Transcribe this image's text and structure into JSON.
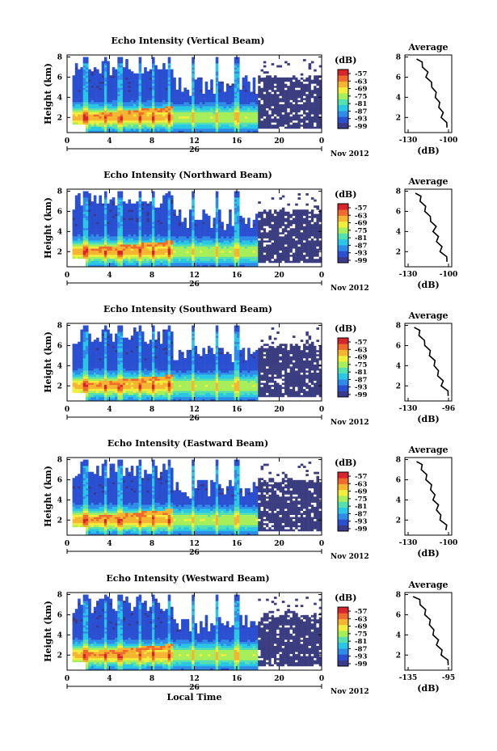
{
  "chart_data": [
    {
      "type": "heatmap",
      "title": "Echo Intensity (Vertical Beam)",
      "ylabel": "Height (km)",
      "xlabel": "",
      "date_label": "Nov 2012",
      "day_label": "26",
      "xticks": [
        "0",
        "4",
        "8",
        "12",
        "16",
        "20",
        "0"
      ],
      "yticks": [
        "2",
        "4",
        "6",
        "8"
      ],
      "xlim": [
        0,
        24
      ],
      "ylim": [
        0.5,
        8.2
      ],
      "colorbar": {
        "label": "(dB)",
        "ticks": [
          "-57",
          "-63",
          "-69",
          "-75",
          "-81",
          "-87",
          "-93",
          "-99"
        ],
        "range": [
          -99,
          -54
        ]
      },
      "average_profile": {
        "title": "Average",
        "xlabel": "(dB)",
        "xticks": [
          "-130",
          "-100"
        ],
        "yticks": [
          "2",
          "4",
          "6",
          "8"
        ],
        "xlim": [
          -135,
          -95
        ],
        "ylim": [
          0.5,
          8.2
        ],
        "height_km": [
          1.0,
          1.5,
          2.0,
          2.5,
          3.0,
          3.5,
          4.0,
          4.5,
          5.0,
          5.5,
          6.0,
          6.5,
          7.0,
          7.5,
          7.8
        ],
        "db": [
          -98,
          -101,
          -103,
          -104,
          -105,
          -107,
          -108,
          -110,
          -111,
          -114,
          -116,
          -117,
          -119,
          -122,
          -124
        ]
      }
    },
    {
      "type": "heatmap",
      "title": "Echo Intensity (Northward Beam)",
      "ylabel": "Height (km)",
      "xlabel": "",
      "date_label": "Nov 2012",
      "day_label": "26",
      "xticks": [
        "0",
        "4",
        "8",
        "12",
        "16",
        "20",
        "0"
      ],
      "yticks": [
        "2",
        "4",
        "6",
        "8"
      ],
      "xlim": [
        0,
        24
      ],
      "ylim": [
        0.5,
        8.2
      ],
      "colorbar": {
        "label": "(dB)",
        "ticks": [
          "-57",
          "-63",
          "-69",
          "-75",
          "-81",
          "-87",
          "-93",
          "-99"
        ],
        "range": [
          -99,
          -54
        ]
      },
      "average_profile": {
        "title": "Average",
        "xlabel": "(dB)",
        "xticks": [
          "-130",
          "-100"
        ],
        "yticks": [
          "2",
          "4",
          "6",
          "8"
        ],
        "xlim": [
          -135,
          -95
        ],
        "ylim": [
          0.5,
          8.2
        ],
        "height_km": [
          1.0,
          1.5,
          2.0,
          2.5,
          3.0,
          3.5,
          4.0,
          4.5,
          5.0,
          5.5,
          6.0,
          6.5,
          7.0,
          7.5,
          7.8
        ],
        "db": [
          -98,
          -101,
          -104,
          -105,
          -107,
          -108,
          -110,
          -110,
          -112,
          -115,
          -117,
          -119,
          -121,
          -123,
          -125
        ]
      }
    },
    {
      "type": "heatmap",
      "title": "Echo Intensity (Southward Beam)",
      "ylabel": "Height (km)",
      "xlabel": "",
      "date_label": "Nov 2012",
      "day_label": "26",
      "xticks": [
        "0",
        "4",
        "8",
        "12",
        "16",
        "20",
        "0"
      ],
      "yticks": [
        "2",
        "4",
        "6",
        "8"
      ],
      "xlim": [
        0,
        24
      ],
      "ylim": [
        0.5,
        8.2
      ],
      "colorbar": {
        "label": "(dB)",
        "ticks": [
          "-57",
          "-63",
          "-69",
          "-75",
          "-81",
          "-87",
          "-93",
          "-99"
        ],
        "range": [
          -99,
          -54
        ]
      },
      "average_profile": {
        "title": "Average",
        "xlabel": "(dB)",
        "xticks": [
          "-130",
          "-96"
        ],
        "yticks": [
          "2",
          "4",
          "6",
          "8"
        ],
        "xlim": [
          -135,
          -95
        ],
        "ylim": [
          0.5,
          8.2
        ],
        "height_km": [
          1.0,
          1.5,
          2.0,
          2.5,
          3.0,
          3.5,
          4.0,
          4.5,
          5.0,
          5.5,
          6.0,
          6.5,
          7.0,
          7.5,
          7.8
        ],
        "db": [
          -97,
          -100,
          -103,
          -104,
          -106,
          -108,
          -109,
          -111,
          -113,
          -115,
          -117,
          -120,
          -122,
          -124,
          -126
        ]
      }
    },
    {
      "type": "heatmap",
      "title": "Echo Intensity (Eastward Beam)",
      "ylabel": "Height (km)",
      "xlabel": "",
      "date_label": "Nov 2012",
      "day_label": "26",
      "xticks": [
        "0",
        "4",
        "8",
        "12",
        "16",
        "20",
        "0"
      ],
      "yticks": [
        "2",
        "4",
        "6",
        "8"
      ],
      "xlim": [
        0,
        24
      ],
      "ylim": [
        0.5,
        8.2
      ],
      "colorbar": {
        "label": "(dB)",
        "ticks": [
          "-57",
          "-63",
          "-69",
          "-75",
          "-81",
          "-87",
          "-93",
          "-99"
        ],
        "range": [
          -99,
          -54
        ]
      },
      "average_profile": {
        "title": "Average",
        "xlabel": "(dB)",
        "xticks": [
          "-130",
          "-100"
        ],
        "yticks": [
          "2",
          "4",
          "6",
          "8"
        ],
        "xlim": [
          -135,
          -95
        ],
        "ylim": [
          0.5,
          8.2
        ],
        "height_km": [
          1.0,
          1.5,
          2.0,
          2.5,
          3.0,
          3.5,
          4.0,
          4.5,
          5.0,
          5.5,
          6.0,
          6.5,
          7.0,
          7.5,
          7.8
        ],
        "db": [
          -99,
          -101,
          -104,
          -106,
          -107,
          -108,
          -110,
          -111,
          -112,
          -114,
          -116,
          -118,
          -120,
          -122,
          -124
        ]
      }
    },
    {
      "type": "heatmap",
      "title": "Echo Intensity (Westward Beam)",
      "ylabel": "Height (km)",
      "xlabel": "Local Time",
      "date_label": "Nov 2012",
      "day_label": "26",
      "xticks": [
        "0",
        "4",
        "8",
        "12",
        "16",
        "20",
        "0"
      ],
      "yticks": [
        "2",
        "4",
        "6",
        "8"
      ],
      "xlim": [
        0,
        24
      ],
      "ylim": [
        0.5,
        8.2
      ],
      "colorbar": {
        "label": "(dB)",
        "ticks": [
          "-57",
          "-63",
          "-69",
          "-75",
          "-81",
          "-87",
          "-93",
          "-99"
        ],
        "range": [
          -99,
          -54
        ]
      },
      "average_profile": {
        "title": "Average",
        "xlabel": "(dB)",
        "xticks": [
          "-135",
          "-95"
        ],
        "yticks": [
          "2",
          "4",
          "6",
          "8"
        ],
        "xlim": [
          -135,
          -95
        ],
        "ylim": [
          0.5,
          8.2
        ],
        "height_km": [
          1.0,
          1.5,
          2.0,
          2.5,
          3.0,
          3.5,
          4.0,
          4.5,
          5.0,
          5.5,
          6.0,
          6.5,
          7.0,
          7.5,
          7.8
        ],
        "db": [
          -97,
          -100,
          -103,
          -105,
          -107,
          -108,
          -110,
          -112,
          -113,
          -115,
          -117,
          -119,
          -121,
          -124,
          -127
        ]
      }
    }
  ],
  "colors": {
    "colormap": [
      "#3a3a8c",
      "#2b4fd1",
      "#2f8be8",
      "#29c6e6",
      "#55e0b0",
      "#a7ef5a",
      "#f2ee3c",
      "#f5b531",
      "#ef6a2c",
      "#d8242b"
    ],
    "low_echo": "#3b3d80",
    "axis": "#000000"
  }
}
